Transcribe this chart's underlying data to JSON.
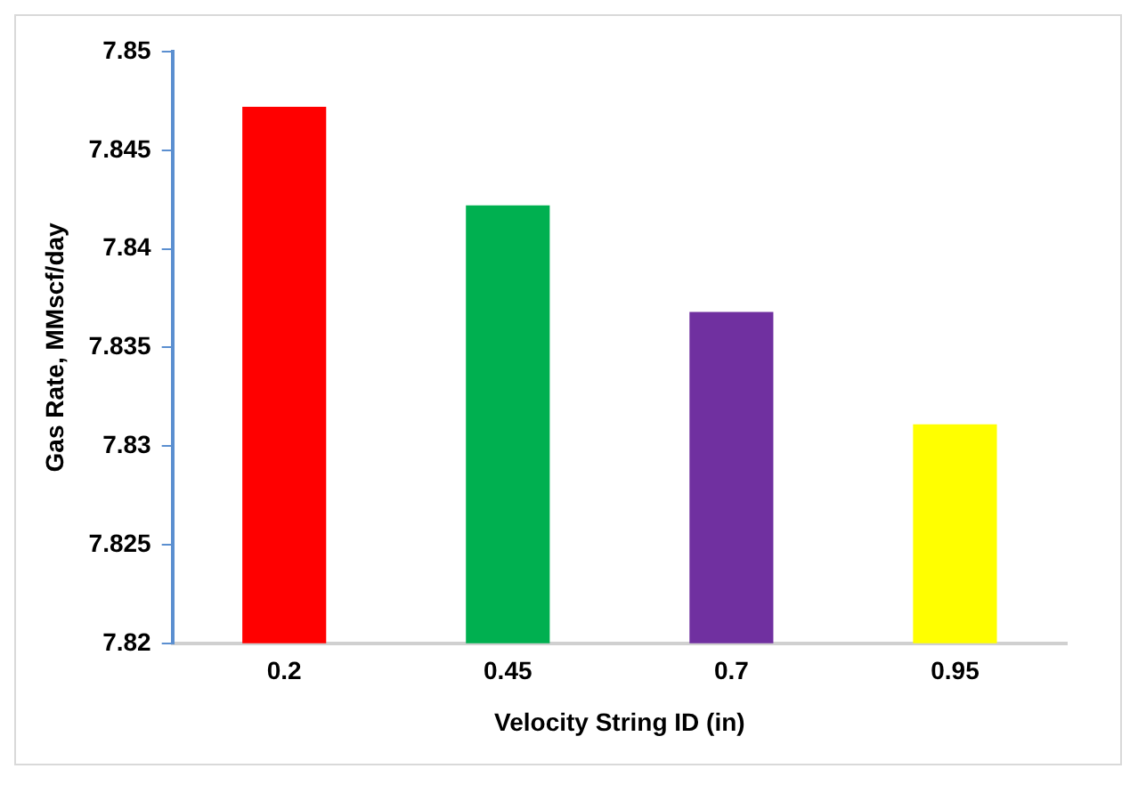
{
  "chart_data": {
    "type": "bar",
    "xlabel": "Velocity String ID (in)",
    "ylabel": "Gas Rate, MMscf/day",
    "categories": [
      "0.2",
      "0.45",
      "0.7",
      "0.95"
    ],
    "values": [
      7.8472,
      7.8422,
      7.8368,
      7.8311
    ],
    "colors": [
      "#ff0000",
      "#00b050",
      "#7030a0",
      "#ffff00"
    ],
    "ylim": [
      7.82,
      7.85
    ],
    "yticks": [
      7.82,
      7.825,
      7.83,
      7.835,
      7.84,
      7.845,
      7.85
    ],
    "grid": false,
    "legend": false
  }
}
